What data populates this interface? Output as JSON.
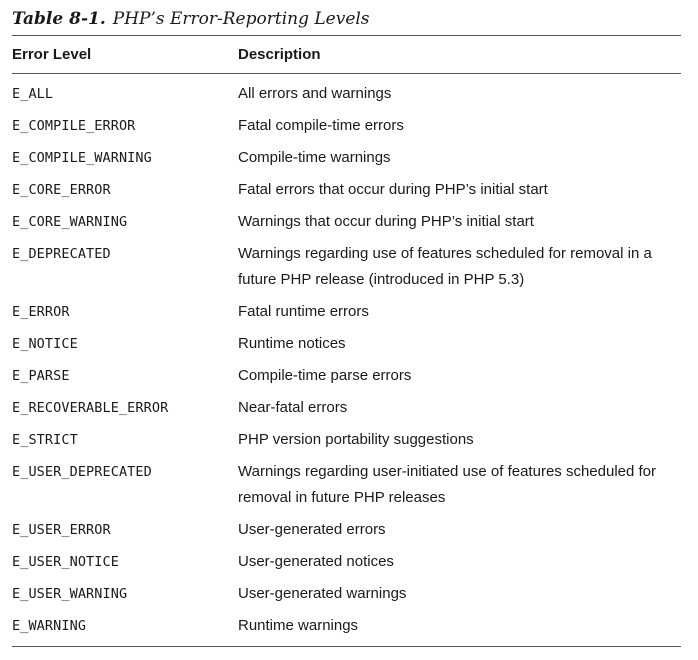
{
  "table": {
    "number": "Table 8-1.",
    "title": "PHP’s Error-Reporting Levels",
    "headers": {
      "level": "Error Level",
      "description": "Description"
    },
    "rows": [
      {
        "level": "E_ALL",
        "description": "All errors and warnings"
      },
      {
        "level": "E_COMPILE_ERROR",
        "description": "Fatal compile-time errors"
      },
      {
        "level": "E_COMPILE_WARNING",
        "description": "Compile-time warnings"
      },
      {
        "level": "E_CORE_ERROR",
        "description": "Fatal errors that occur during PHP’s initial start"
      },
      {
        "level": "E_CORE_WARNING",
        "description": "Warnings that occur during PHP’s initial start"
      },
      {
        "level": "E_DEPRECATED",
        "description": "Warnings regarding use of features scheduled for removal in a future PHP release (introduced in PHP 5.3)"
      },
      {
        "level": "E_ERROR",
        "description": "Fatal runtime errors"
      },
      {
        "level": "E_NOTICE",
        "description": "Runtime notices"
      },
      {
        "level": "E_PARSE",
        "description": "Compile-time parse errors"
      },
      {
        "level": "E_RECOVERABLE_ERROR",
        "description": "Near-fatal errors"
      },
      {
        "level": "E_STRICT",
        "description": "PHP version portability suggestions"
      },
      {
        "level": "E_USER_DEPRECATED",
        "description": "Warnings regarding user-initiated use of features scheduled for removal in future PHP releases"
      },
      {
        "level": "E_USER_ERROR",
        "description": "User-generated errors"
      },
      {
        "level": "E_USER_NOTICE",
        "description": "User-generated notices"
      },
      {
        "level": "E_USER_WARNING",
        "description": "User-generated warnings"
      },
      {
        "level": "E_WARNING",
        "description": "Runtime warnings"
      }
    ]
  }
}
